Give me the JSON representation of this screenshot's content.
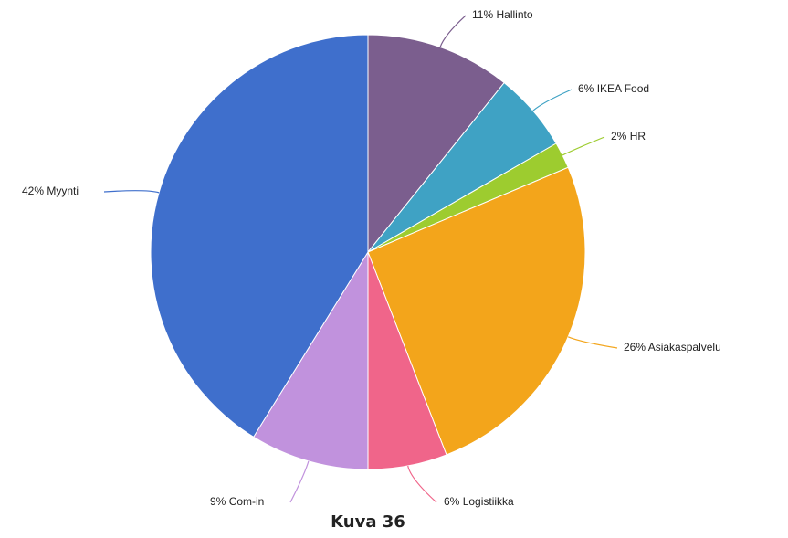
{
  "chart_data": {
    "type": "pie",
    "categories": [
      "Hallinto",
      "IKEA Food",
      "HR",
      "Asiakaspalvelu",
      "Logistiikka",
      "Com-in",
      "Myynti"
    ],
    "values": [
      11,
      6,
      2,
      26,
      6,
      9,
      42
    ],
    "value_labels": [
      "11%",
      "6%",
      "2%",
      "26%",
      "6%",
      "9%",
      "42%"
    ],
    "colors": [
      "#7b5e8e",
      "#3fa2c4",
      "#9dcc2f",
      "#f3a51b",
      "#f0658a",
      "#c192dd",
      "#3f6fcc"
    ],
    "caption": "Kuva 36"
  }
}
